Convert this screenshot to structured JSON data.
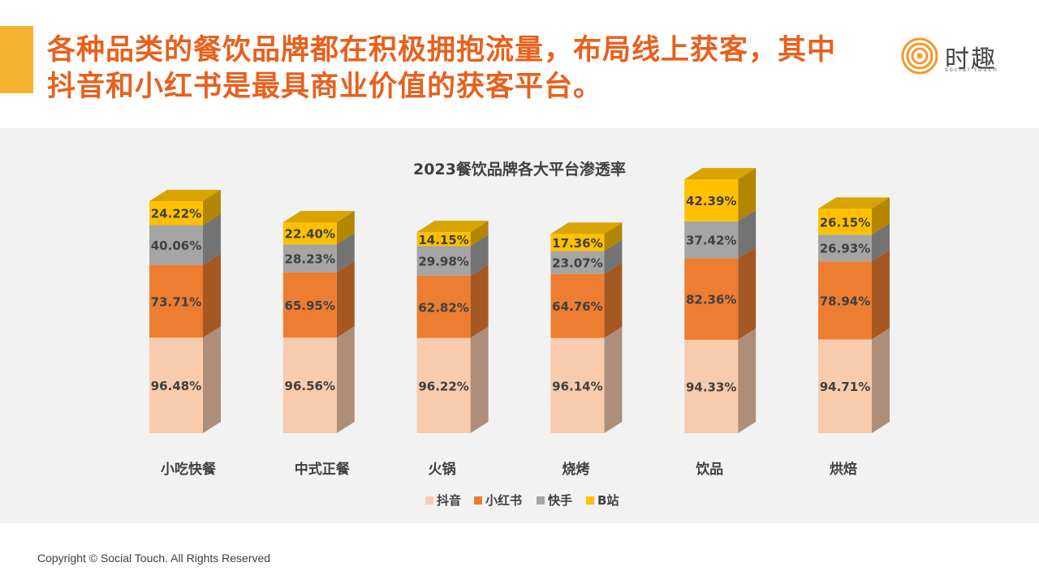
{
  "headline": {
    "line1": "各种品类的餐饮品牌都在积极拥抱流量，布局线上获客，其中",
    "line2": "抖音和小红书是最具商业价值的获客平台。"
  },
  "logo": {
    "name": "时趣",
    "tagline": "social touch"
  },
  "footer": {
    "copyright": "Copyright © Social Touch. All Rights Reserved"
  },
  "colors": {
    "accent": "#e8601c",
    "bar": "#f6b331"
  },
  "chart_data": {
    "type": "bar",
    "stacked": true,
    "title": "2023餐饮品牌各大平台渗透率",
    "categories": [
      "小吃快餐",
      "中式正餐",
      "火锅",
      "烧烤",
      "饮品",
      "烘焙"
    ],
    "series": [
      {
        "name": "抖音",
        "color": "#f8cbad",
        "values": [
          96.48,
          96.56,
          96.22,
          96.14,
          94.33,
          94.71
        ],
        "labels": [
          "96.48%",
          "96.56%",
          "96.22%",
          "96.14%",
          "94.33%",
          "94.71%"
        ]
      },
      {
        "name": "小红书",
        "color": "#ed7d31",
        "values": [
          73.71,
          65.95,
          62.82,
          64.76,
          82.36,
          78.94
        ],
        "labels": [
          "73.71%",
          "65.95%",
          "62.82%",
          "64.76%",
          "82.36%",
          "78.94%"
        ]
      },
      {
        "name": "快手",
        "color": "#a5a5a5",
        "values": [
          40.06,
          28.23,
          29.98,
          23.07,
          37.42,
          26.93
        ],
        "labels": [
          "40.06%",
          "28.23%",
          "29.98%",
          "23.07%",
          "37.42%",
          "26.93%"
        ]
      },
      {
        "name": "B站",
        "color": "#ffc000",
        "values": [
          24.22,
          22.4,
          14.15,
          17.36,
          42.39,
          26.15
        ],
        "labels": [
          "24.22%",
          "22.40%",
          "14.15%",
          "17.36%",
          "42.39%",
          "26.15%"
        ]
      }
    ],
    "legend_position": "bottom",
    "grid": false
  }
}
